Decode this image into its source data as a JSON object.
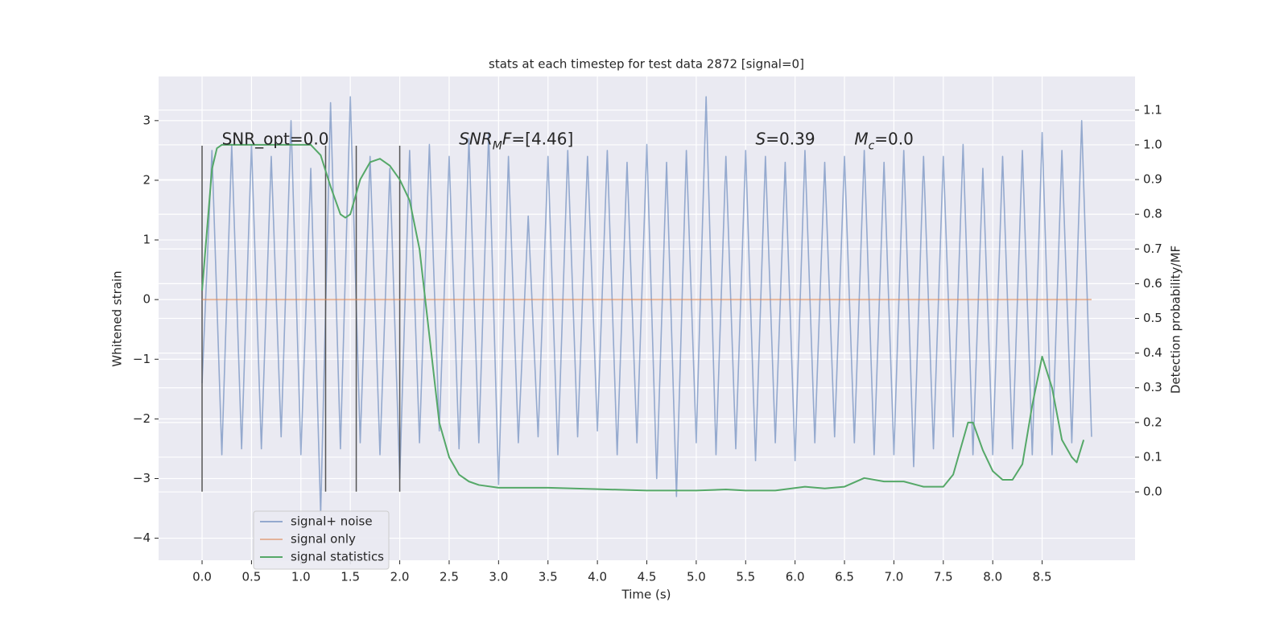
{
  "chart_data": {
    "type": "line",
    "title": "stats at each timestep for test data 2872 [signal=0]",
    "xlabel": "Time (s)",
    "ylabel": "Whitened strain",
    "y2label": "Detection probability/MF",
    "xlim": [
      -0.44,
      9.44
    ],
    "ylim": [
      -4.37,
      3.74
    ],
    "y2lim": [
      -0.197,
      1.197
    ],
    "xticks": [
      {
        "value": 0,
        "label": "0.0"
      },
      {
        "value": 0.5,
        "label": "0.5"
      },
      {
        "value": 1,
        "label": "1.0"
      },
      {
        "value": 1.5,
        "label": "1.5"
      },
      {
        "value": 2,
        "label": "2.0"
      },
      {
        "value": 2.5,
        "label": "2.5"
      },
      {
        "value": 3,
        "label": "3.0"
      },
      {
        "value": 3.5,
        "label": "3.5"
      },
      {
        "value": 4,
        "label": "4.0"
      },
      {
        "value": 4.5,
        "label": "4.5"
      },
      {
        "value": 5,
        "label": "5.0"
      },
      {
        "value": 5.5,
        "label": "5.5"
      },
      {
        "value": 6,
        "label": "6.0"
      },
      {
        "value": 6.5,
        "label": "6.5"
      },
      {
        "value": 7,
        "label": "7.0"
      },
      {
        "value": 7.5,
        "label": "7.5"
      },
      {
        "value": 8,
        "label": "8.0"
      },
      {
        "value": 8.5,
        "label": "8.5"
      }
    ],
    "yticks": [
      {
        "value": -4,
        "label": "−4"
      },
      {
        "value": -3,
        "label": "−3"
      },
      {
        "value": -2,
        "label": "−2"
      },
      {
        "value": -1,
        "label": "−1"
      },
      0,
      1,
      2,
      3
    ],
    "y2ticks": [
      {
        "value": 0,
        "label": "0.0"
      },
      0.1,
      0.2,
      0.3,
      0.4,
      0.5,
      0.6,
      0.7,
      0.8,
      0.9,
      {
        "value": 1,
        "label": "1.0"
      },
      1.1
    ],
    "grid": true,
    "legend": "lower left",
    "series": [
      {
        "name": "signal+ noise",
        "color": "#4c72b0",
        "x": [
          0,
          0.1,
          0.2,
          0.3,
          0.4,
          0.5,
          0.6,
          0.7,
          0.8,
          0.9,
          1,
          1.1,
          1.2,
          1.3,
          1.4,
          1.5,
          1.6,
          1.7,
          1.8,
          1.9,
          2,
          2.1,
          2.2,
          2.3,
          2.4,
          2.5,
          2.6,
          2.7,
          2.8,
          2.9,
          3,
          3.1,
          3.2,
          3.3,
          3.4,
          3.5,
          3.6,
          3.7,
          3.8,
          3.9,
          4,
          4.1,
          4.2,
          4.3,
          4.4,
          4.5,
          4.6,
          4.7,
          4.8,
          4.9,
          5,
          5.1,
          5.2,
          5.3,
          5.4,
          5.5,
          5.6,
          5.7,
          5.8,
          5.9,
          6,
          6.1,
          6.2,
          6.3,
          6.4,
          6.5,
          6.6,
          6.7,
          6.8,
          6.9,
          7,
          7.1,
          7.2,
          7.3,
          7.4,
          7.5,
          7.6,
          7.7,
          7.8,
          7.9,
          8,
          8.1,
          8.2,
          8.3,
          8.4,
          8.5,
          8.6,
          8.7,
          8.8,
          8.9,
          9
        ],
        "values": [
          -1.4,
          2.5,
          -2.6,
          2.6,
          -2.5,
          2.6,
          -2.5,
          2.4,
          -2.3,
          3.0,
          -2.6,
          2.2,
          -3.6,
          3.3,
          -2.5,
          3.4,
          -2.4,
          2.4,
          -2.6,
          2.2,
          -3.0,
          2.5,
          -2.4,
          2.6,
          -2.2,
          2.4,
          -2.5,
          2.7,
          -2.4,
          2.8,
          -3.1,
          2.4,
          -2.4,
          1.4,
          -2.3,
          2.4,
          -2.6,
          2.5,
          -2.3,
          2.4,
          -2.2,
          2.5,
          -2.6,
          2.3,
          -2.4,
          2.6,
          -3.0,
          2.3,
          -3.3,
          2.5,
          -2.4,
          3.4,
          -2.6,
          2.4,
          -2.5,
          2.5,
          -2.7,
          2.4,
          -2.4,
          2.3,
          -2.7,
          2.5,
          -2.4,
          2.3,
          -2.3,
          2.4,
          -2.4,
          2.5,
          -2.6,
          2.3,
          -2.6,
          2.5,
          -2.8,
          2.4,
          -2.5,
          2.4,
          -2.3,
          2.6,
          -2.6,
          2.2,
          -2.6,
          2.4,
          -2.5,
          2.5,
          -2.6,
          2.8,
          -2.6,
          2.5,
          -2.4,
          3.0,
          -2.3
        ]
      },
      {
        "name": "signal only",
        "color": "#dd8452",
        "x": [
          0,
          9
        ],
        "values": [
          0,
          0
        ]
      },
      {
        "name": "signal statistics",
        "color": "#55a868",
        "axis": "y2",
        "x": [
          0,
          0.1,
          0.15,
          0.2,
          0.4,
          0.6,
          0.8,
          1.0,
          1.1,
          1.2,
          1.3,
          1.4,
          1.45,
          1.5,
          1.6,
          1.7,
          1.8,
          1.9,
          2.0,
          2.1,
          2.2,
          2.3,
          2.4,
          2.5,
          2.6,
          2.7,
          2.8,
          3.0,
          3.5,
          4.0,
          4.5,
          5.0,
          5.3,
          5.5,
          5.8,
          6.1,
          6.3,
          6.5,
          6.7,
          6.9,
          7.1,
          7.3,
          7.5,
          7.6,
          7.75,
          7.8,
          7.9,
          8.0,
          8.1,
          8.2,
          8.3,
          8.4,
          8.5,
          8.6,
          8.7,
          8.8,
          8.85,
          8.92
        ],
        "values": [
          0.58,
          0.93,
          0.99,
          1.0,
          1.0,
          1.0,
          1.0,
          1.0,
          1.0,
          0.97,
          0.88,
          0.8,
          0.79,
          0.8,
          0.9,
          0.95,
          0.96,
          0.94,
          0.9,
          0.84,
          0.7,
          0.45,
          0.2,
          0.1,
          0.05,
          0.03,
          0.02,
          0.012,
          0.012,
          0.008,
          0.004,
          0.004,
          0.007,
          0.004,
          0.004,
          0.015,
          0.01,
          0.015,
          0.04,
          0.03,
          0.03,
          0.015,
          0.015,
          0.05,
          0.2,
          0.2,
          0.12,
          0.06,
          0.035,
          0.035,
          0.08,
          0.25,
          0.39,
          0.3,
          0.15,
          0.1,
          0.085,
          0.15
        ]
      }
    ],
    "vlines": {
      "color": "#555555",
      "x": [
        0,
        1.25,
        1.56,
        2.0
      ],
      "ymin": -3.22,
      "ymax": 2.58
    },
    "annotations": [
      {
        "x": 0.2,
        "y": 2.68,
        "runs": [
          {
            "text": "SNR_opt=0.0",
            "style": "normal"
          }
        ]
      },
      {
        "x": 2.6,
        "y": 2.68,
        "runs": [
          {
            "text": "SNR",
            "style": "italic"
          },
          {
            "text": "M",
            "style": "italic-sub"
          },
          {
            "text": "F",
            "style": "italic"
          },
          {
            "text": "=[4.46]",
            "style": "normal"
          }
        ]
      },
      {
        "x": 5.6,
        "y": 2.68,
        "runs": [
          {
            "text": "S",
            "style": "italic"
          },
          {
            "text": "=0.39",
            "style": "normal"
          }
        ]
      },
      {
        "x": 6.6,
        "y": 2.68,
        "runs": [
          {
            "text": "M",
            "style": "italic"
          },
          {
            "text": "c",
            "style": "italic-sub"
          },
          {
            "text": "=0.0",
            "style": "normal"
          }
        ]
      }
    ]
  }
}
